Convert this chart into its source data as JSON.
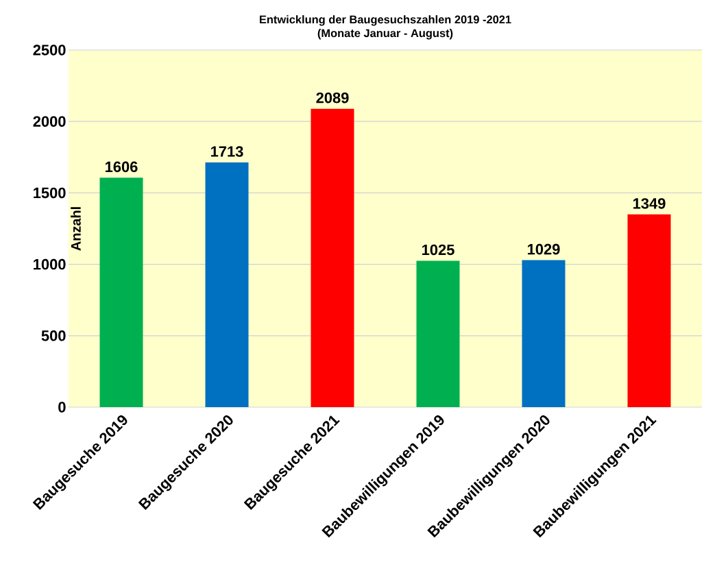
{
  "chart_data": {
    "type": "bar",
    "title": "Entwicklung der Baugesuchszahlen 2019 -2021",
    "subtitle": "(Monate Januar - August)",
    "ylabel": "Anzahl",
    "categories": [
      "Baugesuche 2019",
      "Baugesuche 2020",
      "Baugesuche 2021",
      "Baubewilligungen 2019",
      "Baubewilligungen 2020",
      "Baubewilligungen 2021"
    ],
    "values": [
      1606,
      1713,
      2089,
      1025,
      1029,
      1349
    ],
    "colors": [
      "#00b050",
      "#0070c0",
      "#ff0000",
      "#00b050",
      "#0070c0",
      "#ff0000"
    ],
    "ylim": [
      0,
      2500
    ],
    "yticks": [
      0,
      500,
      1000,
      1500,
      2000,
      2500
    ],
    "grid": "y",
    "data_labels": true
  }
}
